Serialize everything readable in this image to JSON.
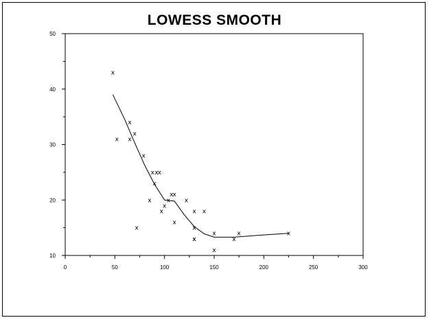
{
  "chart_data": {
    "type": "scatter",
    "title": "LOWESS SMOOTH",
    "xlabel": "",
    "ylabel": "",
    "xlim": [
      0,
      300
    ],
    "ylim": [
      10,
      50
    ],
    "x_ticks": [
      0,
      50,
      100,
      150,
      200,
      250,
      300
    ],
    "y_ticks": [
      10,
      20,
      30,
      40,
      50
    ],
    "grid": false,
    "marker": "x",
    "series": [
      {
        "kind": "points",
        "points": [
          [
            48,
            43
          ],
          [
            52,
            31
          ],
          [
            65,
            34
          ],
          [
            65,
            31
          ],
          [
            70,
            32
          ],
          [
            72,
            15
          ],
          [
            79,
            28
          ],
          [
            85,
            20
          ],
          [
            88,
            25
          ],
          [
            90,
            23
          ],
          [
            92,
            25
          ],
          [
            95,
            25
          ],
          [
            97,
            18
          ],
          [
            100,
            19
          ],
          [
            104,
            20
          ],
          [
            107,
            21
          ],
          [
            110,
            21
          ],
          [
            110,
            16
          ],
          [
            122,
            20
          ],
          [
            130,
            18
          ],
          [
            130,
            15
          ],
          [
            130,
            13
          ],
          [
            130,
            13
          ],
          [
            140,
            18
          ],
          [
            150,
            14
          ],
          [
            150,
            11
          ],
          [
            170,
            13
          ],
          [
            175,
            14
          ],
          [
            225,
            14
          ]
        ]
      },
      {
        "kind": "smooth",
        "points": [
          [
            48,
            39
          ],
          [
            60,
            34.5
          ],
          [
            70,
            30.3
          ],
          [
            80,
            26.3
          ],
          [
            90,
            22.8
          ],
          [
            100,
            20.0
          ],
          [
            110,
            19.8
          ],
          [
            120,
            17.3
          ],
          [
            130,
            15.2
          ],
          [
            140,
            13.9
          ],
          [
            150,
            13.3
          ],
          [
            170,
            13.3
          ],
          [
            200,
            13.7
          ],
          [
            225,
            14.0
          ]
        ]
      }
    ]
  }
}
